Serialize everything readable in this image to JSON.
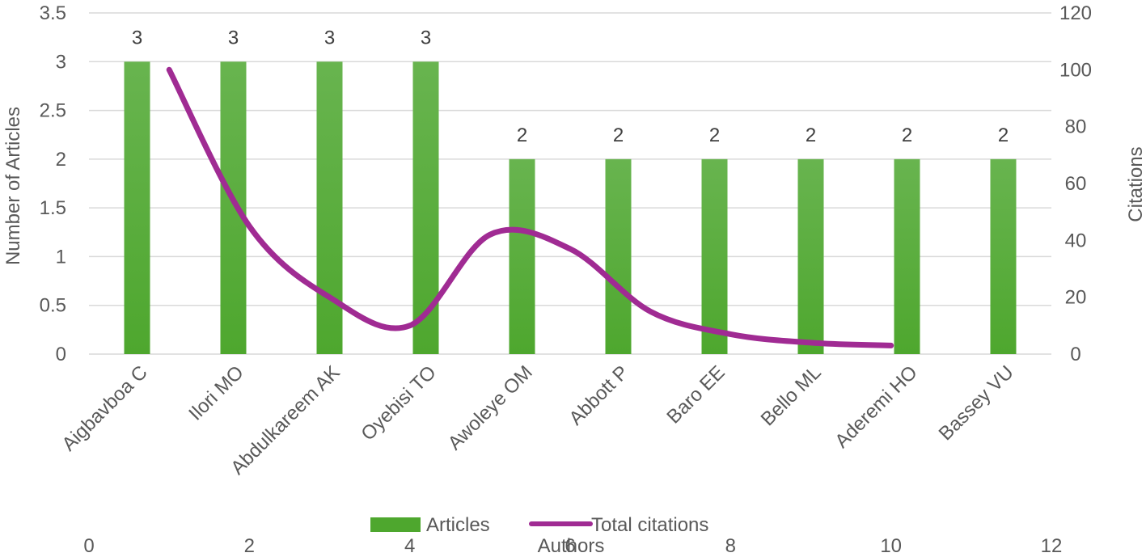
{
  "chart_data": {
    "type": "bar",
    "categories": [
      "Aigbavboa C",
      "Ilori MO",
      "Abdulkareem AK",
      "Oyebisi TO",
      "Awoleye OM",
      "Abbott P",
      "Baro EE",
      "Bello ML",
      "Aderemi HO",
      "Bassey VU"
    ],
    "series": [
      {
        "name": "Articles",
        "type": "bar",
        "axis": "left",
        "color": "#4ea72e",
        "values": [
          3,
          3,
          3,
          3,
          2,
          2,
          2,
          2,
          2,
          2
        ],
        "data_labels": [
          "3",
          "3",
          "3",
          "3",
          "2",
          "2",
          "2",
          "2",
          "2",
          "2"
        ]
      },
      {
        "name": "Total citations",
        "type": "line",
        "smooth": true,
        "axis": "secondary",
        "color": "#a02b93",
        "x": [
          1,
          2,
          3,
          4,
          5,
          6,
          7,
          8,
          9,
          10
        ],
        "values": [
          100,
          45,
          20,
          10,
          42,
          37,
          15,
          7,
          4,
          3
        ]
      }
    ],
    "y_left": {
      "label": "Number of Articles",
      "ylim": [
        0,
        3.5
      ],
      "ticks": [
        "0",
        "0.5",
        "1",
        "1.5",
        "2",
        "2.5",
        "3",
        "3.5"
      ]
    },
    "y_right": {
      "label": "Citations",
      "ylim": [
        0,
        120
      ],
      "ticks": [
        "0",
        "20",
        "40",
        "60",
        "80",
        "100",
        "120"
      ]
    },
    "x_secondary": {
      "label": "Authors",
      "xlim": [
        0,
        12
      ],
      "ticks": [
        "0",
        "2",
        "4",
        "6",
        "8",
        "10",
        "12"
      ]
    },
    "grid": true,
    "legend": {
      "position": "bottom",
      "items": [
        "Articles",
        "Total citations"
      ]
    }
  }
}
